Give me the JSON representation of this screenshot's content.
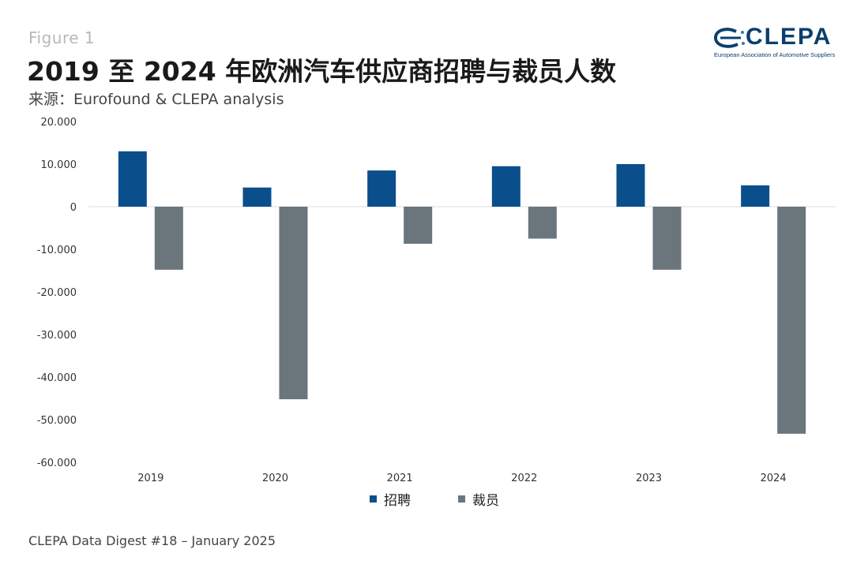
{
  "figure_label": "Figure 1",
  "title": "2019 至 2024 年欧洲汽车供应商招聘与裁员人数",
  "source": "来源：Eurofound & CLEPA analysis",
  "logo": {
    "name": "CLEPA",
    "subtitle": "European Association of Automotive Suppliers"
  },
  "footer": "CLEPA Data Digest #18 – January 2025",
  "colors": {
    "hiring": "#0a4f8c",
    "layoffs": "#6a757c",
    "zero_line": "#d9dde0",
    "tick": "#333333"
  },
  "chart_data": {
    "type": "bar",
    "categories": [
      "2019",
      "2020",
      "2021",
      "2022",
      "2023",
      "2024"
    ],
    "series": [
      {
        "name": "招聘",
        "values": [
          13000,
          4500,
          8500,
          9500,
          10000,
          5000
        ]
      },
      {
        "name": "裁员",
        "values": [
          -14800,
          -45200,
          -8700,
          -7500,
          -14800,
          -53300
        ]
      }
    ],
    "ylim": [
      -60000,
      20000
    ],
    "ytick_labels": [
      "20.000",
      "10.000",
      "0",
      "-10.000",
      "-20.000",
      "-30.000",
      "-40.000",
      "-50.000",
      "-60.000"
    ],
    "legend_position": "bottom",
    "grid": false
  }
}
